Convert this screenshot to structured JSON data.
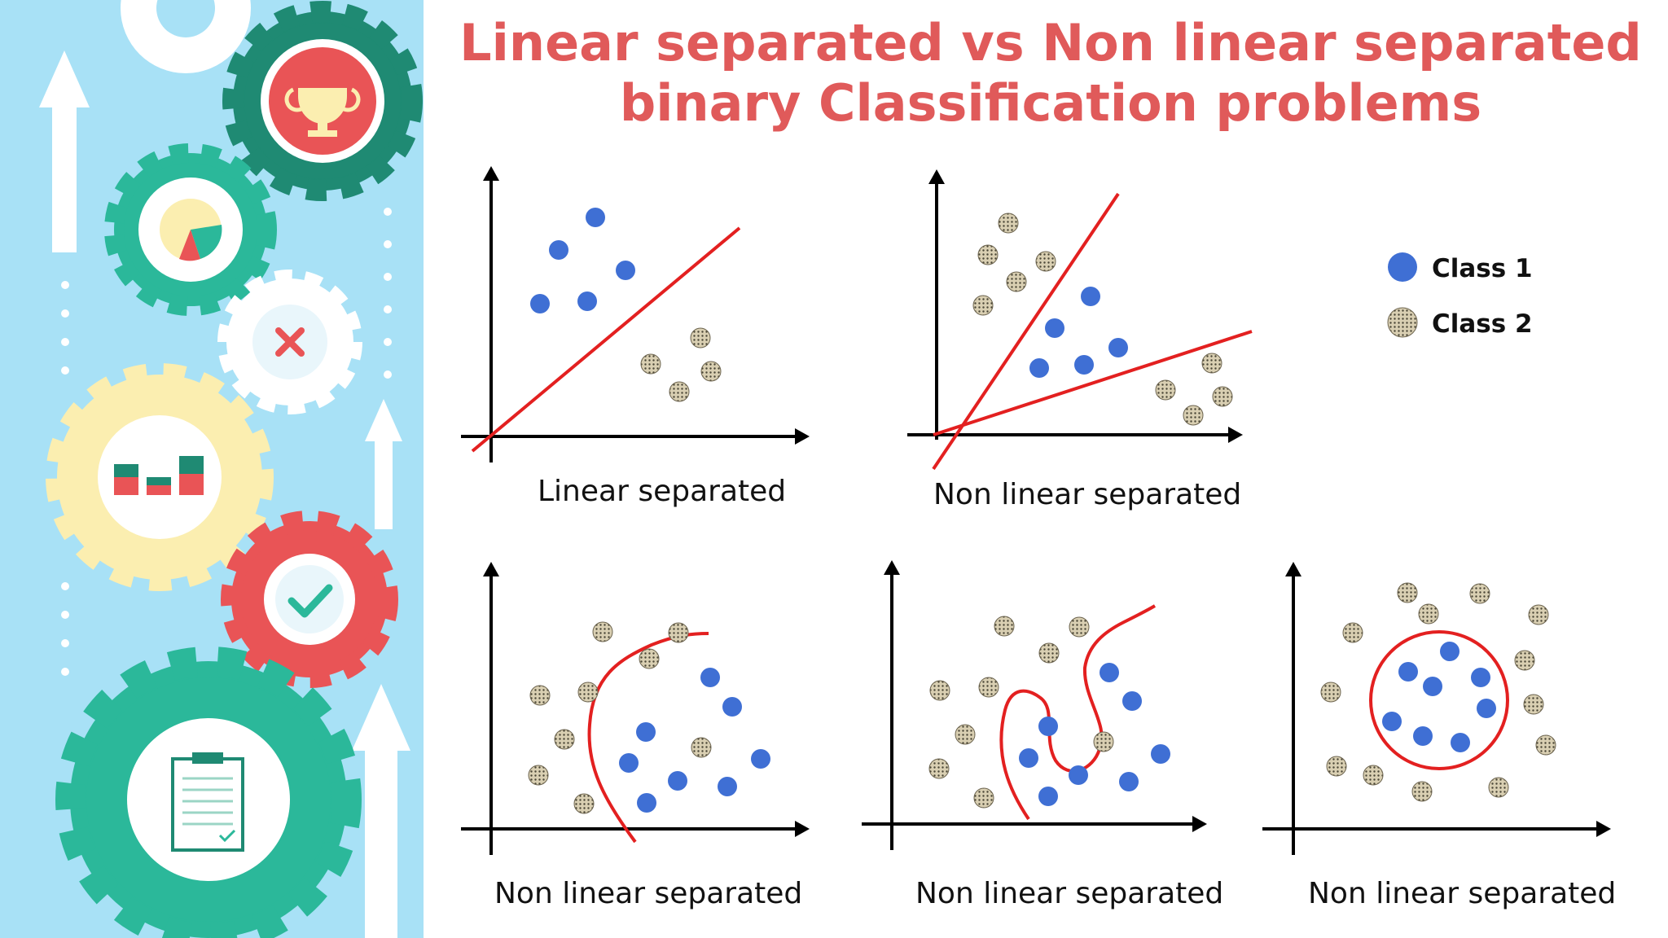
{
  "title": {
    "line1": "Linear separated vs Non linear separated",
    "line2": "binary Classification problems"
  },
  "legend": {
    "class1": "Class 1",
    "class2": "Class 2"
  },
  "colors": {
    "title": "#e05a5a",
    "class1": "#3f6fd4",
    "class2": "#cfc3a4",
    "boundary": "#e32020",
    "sidebar_bg": "#a8e1f6",
    "gear_teal": "#2bb89a",
    "gear_dark_teal": "#1f8a73",
    "gear_red": "#e95456",
    "gear_yellow": "#fbeeb0",
    "gear_white": "#ffffff"
  },
  "sidebar": {
    "icons": [
      "trophy-icon",
      "pie-chart-icon",
      "close-icon",
      "bar-chart-icon",
      "check-icon",
      "clipboard-icon",
      "up-arrow-icon"
    ]
  },
  "panels": [
    {
      "caption": "Linear separated",
      "boundary": "straight-line"
    },
    {
      "caption": "Non linear separated",
      "boundary": "two-lines"
    },
    {
      "caption": "Non linear separated",
      "boundary": "curve"
    },
    {
      "caption": "Non linear separated",
      "boundary": "wavy-curve"
    },
    {
      "caption": "Non linear separated",
      "boundary": "circle"
    }
  ]
}
